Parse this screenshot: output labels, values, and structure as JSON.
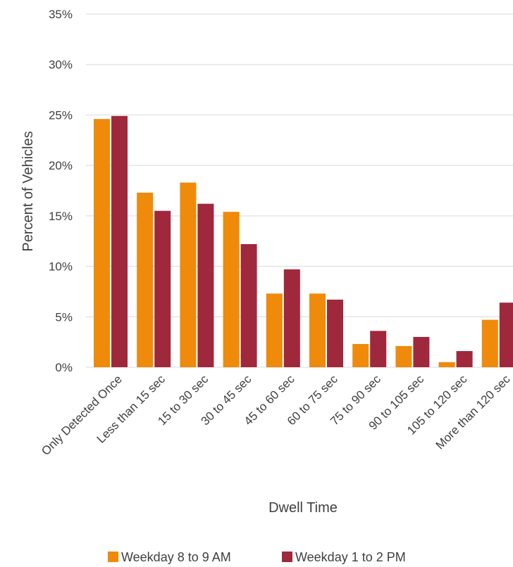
{
  "chart_data": {
    "type": "bar",
    "title": "",
    "xlabel": "Dwell Time",
    "ylabel": "Percent of Vehicles",
    "ylim": [
      0,
      35
    ],
    "yticks": [
      "0%",
      "5%",
      "10%",
      "15%",
      "20%",
      "25%",
      "30%",
      "35%"
    ],
    "grid": true,
    "legend_position": "bottom",
    "categories": [
      "Only Detected Once",
      "Less than 15 sec",
      "15 to 30 sec",
      "30 to 45 sec",
      "45 to 60 sec",
      "60 to 75 sec",
      "75 to 90 sec",
      "90 to 105 sec",
      "105 to 120 sec",
      "More than 120 sec"
    ],
    "series": [
      {
        "name": "Weekday 8 to 9 AM",
        "color": "#F08A0B",
        "values": [
          24.6,
          17.3,
          18.3,
          15.4,
          7.3,
          7.3,
          2.3,
          2.1,
          0.5,
          4.7
        ]
      },
      {
        "name": "Weekday 1 to 2 PM",
        "color": "#A0283C",
        "values": [
          24.9,
          15.5,
          16.2,
          12.2,
          9.7,
          6.7,
          3.6,
          3.0,
          1.6,
          6.4
        ]
      }
    ]
  }
}
